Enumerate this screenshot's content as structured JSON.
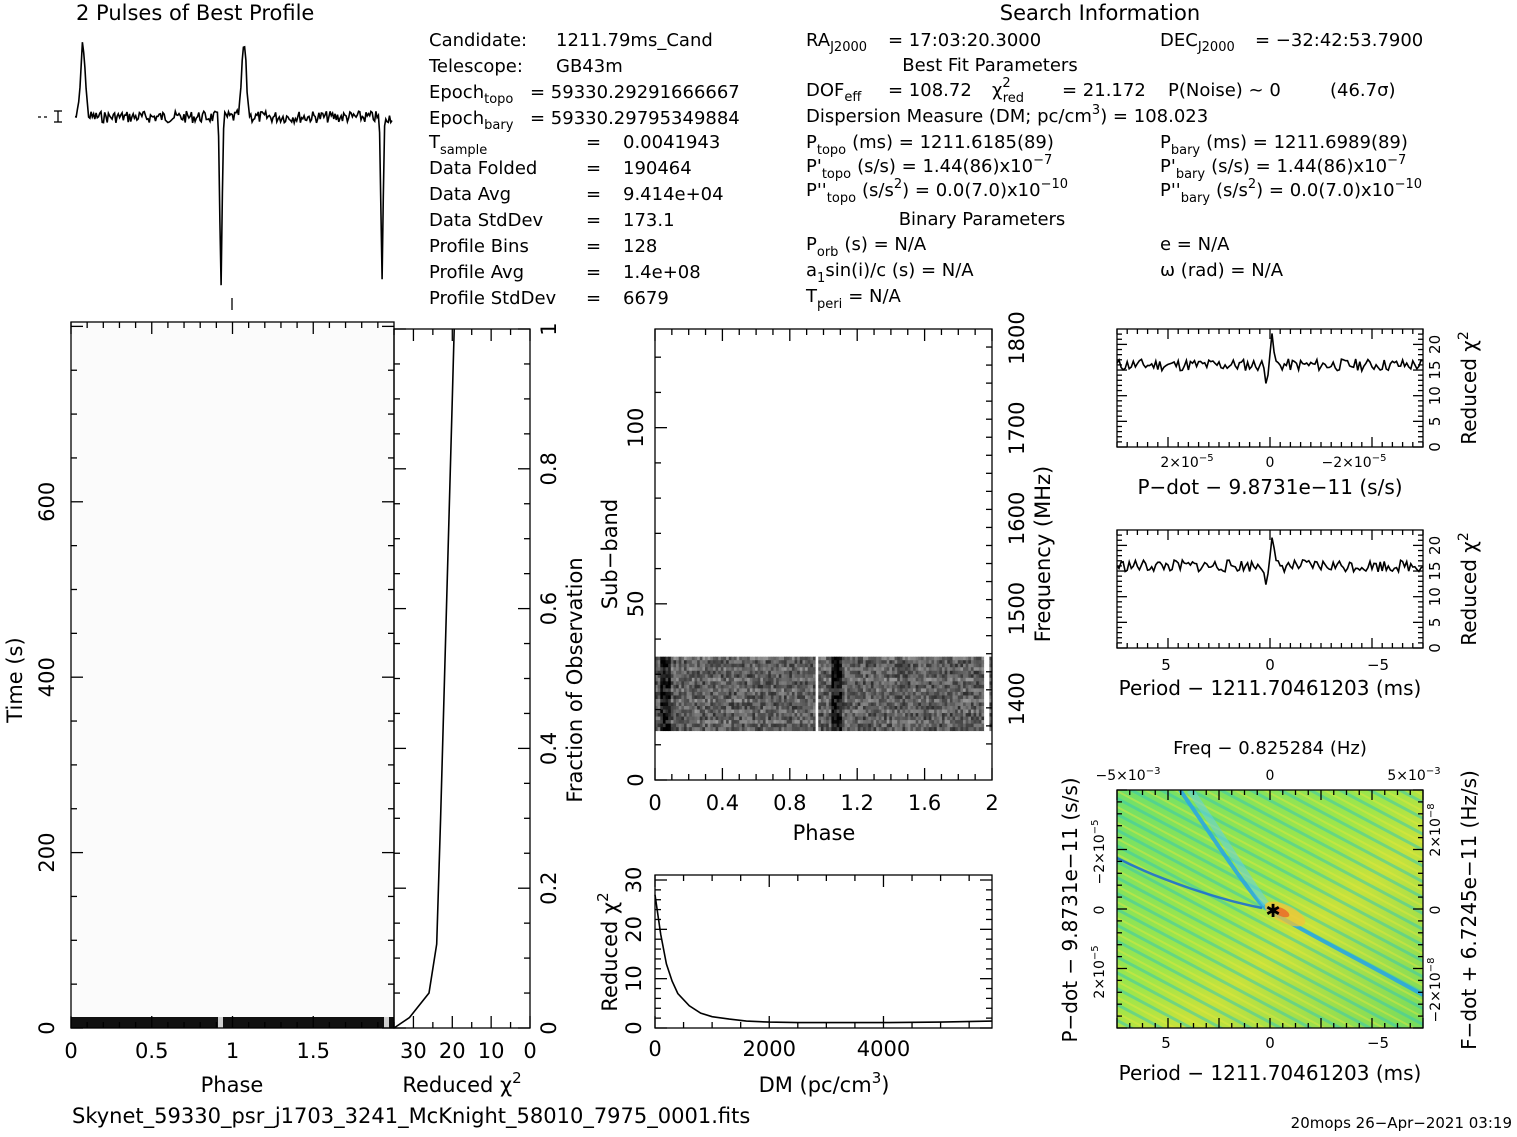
{
  "profile": {
    "title": "2 Pulses of Best Profile"
  },
  "info": {
    "candidate_label": "Candidate:",
    "candidate": "1211.79ms_Cand",
    "telescope_label": "Telescope:",
    "telescope": "GB43m",
    "epoch_topo_label": "Epoch",
    "epoch_topo_sub": "topo",
    "epoch_topo": "= 59330.29291666667",
    "epoch_bary_label": "Epoch",
    "epoch_bary_sub": "bary",
    "epoch_bary": "= 59330.29795349884",
    "tsample_label": "T",
    "tsample_sub": "sample",
    "tsample": "0.0041943",
    "data_folded_label": "Data Folded",
    "data_folded": "190464",
    "data_avg_label": "Data Avg",
    "data_avg": "9.414e+04",
    "data_stddev_label": "Data StdDev",
    "data_stddev": "173.1",
    "profile_bins_label": "Profile Bins",
    "profile_bins": "128",
    "profile_avg_label": "Profile Avg",
    "profile_avg": "1.4e+08",
    "profile_stddev_label": "Profile StdDev",
    "profile_stddev": "6679",
    "equals": "="
  },
  "search": {
    "title": "Search Information",
    "ra_label": "RA",
    "ra_sub": "J2000",
    "ra": "= 17:03:20.3000",
    "dec_label": "DEC",
    "dec_sub": "J2000",
    "dec": "= −32:42:53.7900",
    "best_fit_title": "Best Fit Parameters",
    "dof_label": "DOF",
    "dof_sub": "eff",
    "dof": "= 108.72",
    "chi_label": "χ",
    "chi_sup": "2",
    "chi_sub": "red",
    "chi": "= 21.172",
    "pnoise": "P(Noise) ~ 0",
    "sigma": "(46.7σ)",
    "dm_line": "Dispersion Measure (DM; pc/cm",
    "dm_sup": "3",
    "dm_value": ") = 108.023",
    "ptopo_label": "P",
    "ptopo_sub": "topo",
    "ptopo": "(ms) =  1211.6185(89)",
    "pbary_label": "P",
    "pbary_sub": "bary",
    "pbary": "(ms) =  1211.6989(89)",
    "pdtopo_label": "P'",
    "pdtopo_sub": "topo",
    "pdtopo": "(s/s) =  1.44(86)x10",
    "pdtopo_exp": "−7",
    "pdbary_label": "P'",
    "pdbary_sub": "bary",
    "pdbary": "(s/s) =  1.44(86)x10",
    "pdbary_exp": "−7",
    "pddtopo_label": "P''",
    "pddtopo_sub": "topo",
    "pddtopo": "(s/s",
    "pddtopo_sup": "2",
    "pddtopo_val": ") = 0.0(7.0)x10",
    "pddtopo_exp": "−10",
    "pddbary_label": "P''",
    "pddbary_sub": "bary",
    "pddbary": "(s/s",
    "pddbary_sup": "2",
    "pddbary_val": ") = 0.0(7.0)x10",
    "pddbary_exp": "−10",
    "binary_title": "Binary Parameters",
    "porb_label": "P",
    "porb_sub": "orb",
    "porb": "(s) = N/A",
    "e": "e = N/A",
    "a1_label": "a",
    "a1_sub": "1",
    "a1": "sin(i)/c (s) = N/A",
    "omega": "ω (rad) = N/A",
    "tperi_label": "T",
    "tperi_sub": "peri",
    "tperi": "= N/A"
  },
  "footer": {
    "filename": "Skynet_59330_psr_j1703_3241_McKnight_58010_7975_0001.fits",
    "stamp": "20mops 26−Apr−2021 03:19"
  },
  "chart_data": [
    {
      "id": "time_phase",
      "type": "heatmap",
      "xlabel": "Phase",
      "ylabel": "Time (s)",
      "xlim": [
        0,
        2
      ],
      "ylim": [
        0,
        800
      ],
      "xticks": [
        "0",
        "0.5",
        "1",
        "1.5"
      ],
      "yticks": [
        "0",
        "200",
        "400",
        "600"
      ]
    },
    {
      "id": "reduced_chi_time",
      "type": "line",
      "xlabel": "Reduced χ",
      "xlabel_sup": "2",
      "ylabel_right": "Fraction of Observation",
      "xlim": [
        35,
        0
      ],
      "ylim": [
        0,
        1
      ],
      "xticks": [
        "30",
        "20",
        "10",
        "0"
      ],
      "yticks": [
        "0",
        "0.2",
        "0.4",
        "0.6",
        "0.8",
        "1"
      ],
      "x": [
        35,
        31,
        26,
        24,
        23,
        22,
        21,
        20,
        19.5
      ],
      "y": [
        0.0,
        0.015,
        0.05,
        0.12,
        0.3,
        0.5,
        0.7,
        0.9,
        1.0
      ]
    },
    {
      "id": "subband_phase",
      "type": "heatmap",
      "xlabel": "Phase",
      "ylabel": "Sub−band",
      "ylabel_right": "Frequency (MHz)",
      "xlim": [
        0,
        2
      ],
      "ylim": [
        0,
        128
      ],
      "xticks": [
        "0",
        "0.4",
        "0.8",
        "1.2",
        "1.6",
        "2"
      ],
      "yticks": [
        "0",
        "50",
        "100"
      ],
      "yticks_right": [
        "1400",
        "1500",
        "1600",
        "1700",
        "1800"
      ],
      "band_range": [
        14,
        35
      ]
    },
    {
      "id": "dm_chi",
      "type": "line",
      "xlabel": "DM (pc/cm",
      "xlabel_sup": "3",
      "xlabel_end": ")",
      "ylabel": "Reduced χ",
      "ylabel_sup": "2",
      "xlim": [
        0,
        5900
      ],
      "ylim": [
        0,
        30
      ],
      "xticks": [
        "0",
        "2000",
        "4000"
      ],
      "yticks": [
        "0",
        "10",
        "20",
        "30"
      ],
      "x": [
        0,
        100,
        200,
        300,
        400,
        600,
        800,
        1000,
        1300,
        1600,
        2000,
        2500,
        3000,
        4000,
        5000,
        5900
      ],
      "y": [
        27,
        19,
        13,
        9.5,
        7,
        4.5,
        3,
        2.3,
        1.8,
        1.4,
        1.2,
        1.1,
        1.1,
        1.1,
        1.2,
        1.4
      ]
    },
    {
      "id": "pdot_chi",
      "type": "line",
      "xlabel": "P−dot − 9.8731e−11 (s/s)",
      "ylabel_right": "Reduced χ",
      "ylabel_right_sup": "2",
      "xticks": [
        "2×10",
        "0",
        "−2×10"
      ],
      "xtick_exp": "−5",
      "yticks": [
        "0",
        "5",
        "10",
        "15",
        "20"
      ],
      "ylim": [
        0,
        23
      ]
    },
    {
      "id": "period_chi",
      "type": "line",
      "xlabel": "Period − 1211.70461203 (ms)",
      "ylabel_right": "Reduced χ",
      "ylabel_right_sup": "2",
      "xticks": [
        "5",
        "0",
        "−5"
      ],
      "yticks": [
        "0",
        "5",
        "10",
        "15",
        "20"
      ],
      "ylim": [
        0,
        23
      ]
    },
    {
      "id": "pdot_period_map",
      "type": "heatmap",
      "title": "Freq − 0.825284 (Hz)",
      "xlabel": "Period − 1211.70461203 (ms)",
      "ylabel": "P−dot − 9.8731e−11 (s/s)",
      "ylabel_right": "F−dot + 6.7245e−11 (Hz/s)",
      "xticks": [
        "5",
        "0",
        "−5"
      ],
      "xticks_top": [
        "−5×10",
        "0",
        "5×10"
      ],
      "xticks_top_exp": "−3",
      "yticks_left": [
        "−2×10",
        "0",
        "2×10"
      ],
      "yticks_left_exp": "−5",
      "yticks_right": [
        "−2×10",
        "0",
        "2×10"
      ],
      "yticks_right_exp": "−8"
    }
  ]
}
